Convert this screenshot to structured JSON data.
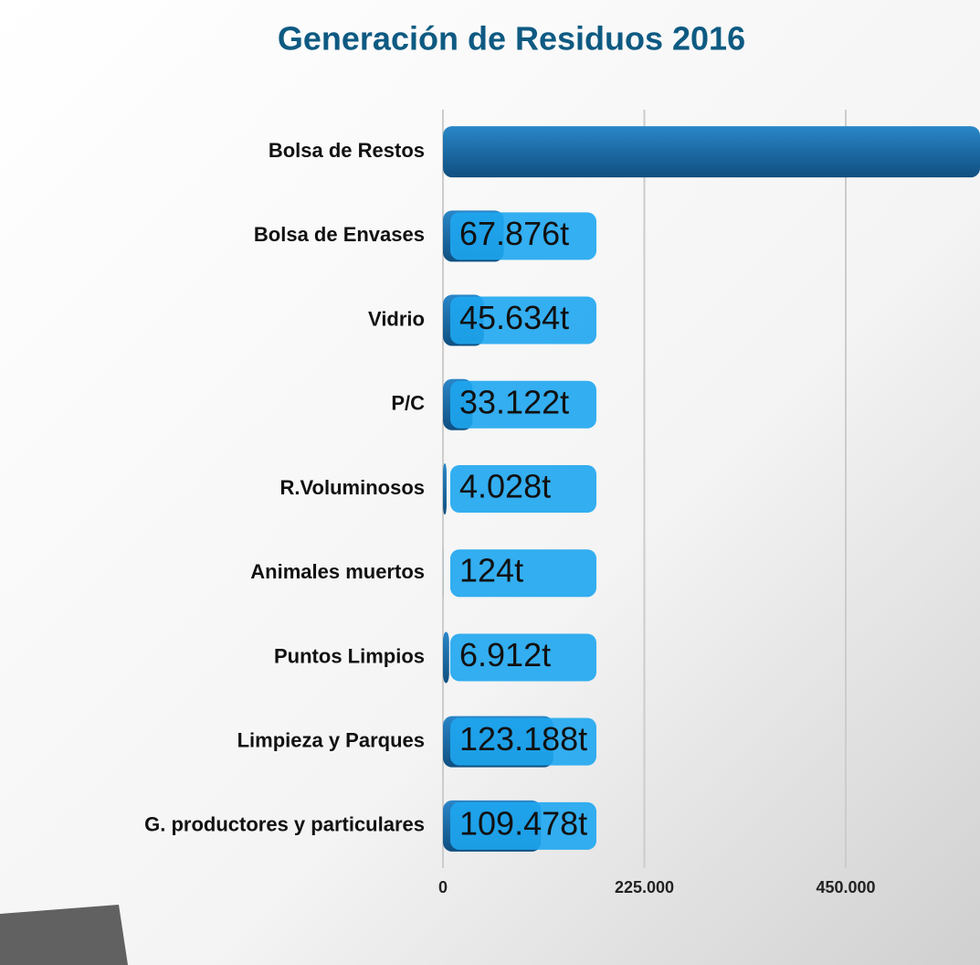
{
  "chart_data": {
    "type": "bar",
    "orientation": "horizontal",
    "title": "Generación de Residuos 2016",
    "categories": [
      "Bolsa de Restos",
      "Bolsa de Envases",
      "Vidrio",
      "P/C",
      "R.Voluminosos",
      "Animales muertos",
      "Puntos Limpios",
      "Limpieza y Parques",
      "G. productores y particulares"
    ],
    "values": [
      600000,
      67876,
      45634,
      33122,
      4028,
      124,
      6912,
      123188,
      109478
    ],
    "value_labels": [
      null,
      "67.876t",
      "45.634t",
      "33.122t",
      "4.028t",
      "124t",
      "6.912t",
      "123.188t",
      "109.478t"
    ],
    "color": "#1a6fb0",
    "xlim": [
      0,
      600000
    ],
    "xticks": [
      0,
      {
        "value": 225000,
        "label": "225.000"
      },
      {
        "value": 450000,
        "label": "450.000"
      }
    ],
    "grid": true
  }
}
